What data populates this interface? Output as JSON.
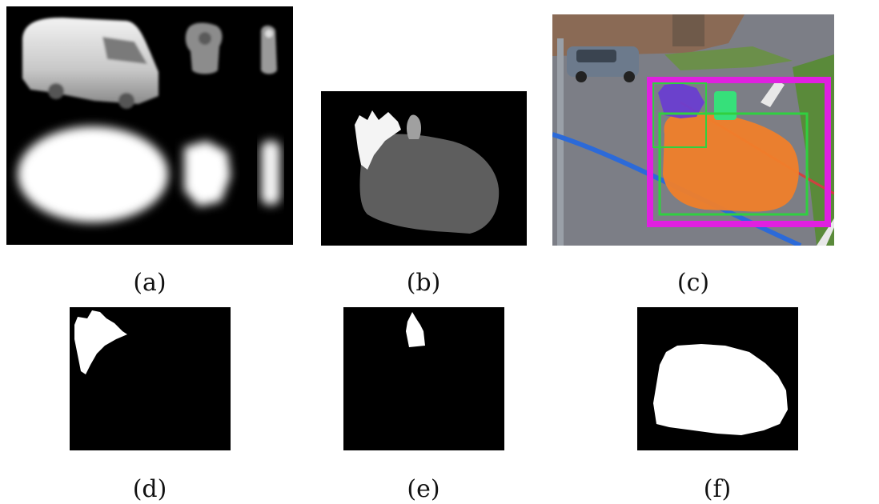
{
  "figure": {
    "captions": {
      "a": "(a)",
      "b": "(b)",
      "c": "(c)",
      "d": "(d)",
      "e": "(e)",
      "f": "(f)"
    },
    "colors": {
      "mask_background": "#000000",
      "mask_foreground": "#ffffff",
      "segment_dark_gray": "#5e5e5e",
      "segment_light_gray": "#a0a0a0",
      "overlay_orange": "#f07f2a",
      "overlay_purple": "#6a3ed0",
      "overlay_green": "#36e07a",
      "box_magenta": "#e020e0",
      "box_green": "#30d040",
      "road_blue_line": "#2c6ad8",
      "road_red_line": "#d04040"
    }
  }
}
